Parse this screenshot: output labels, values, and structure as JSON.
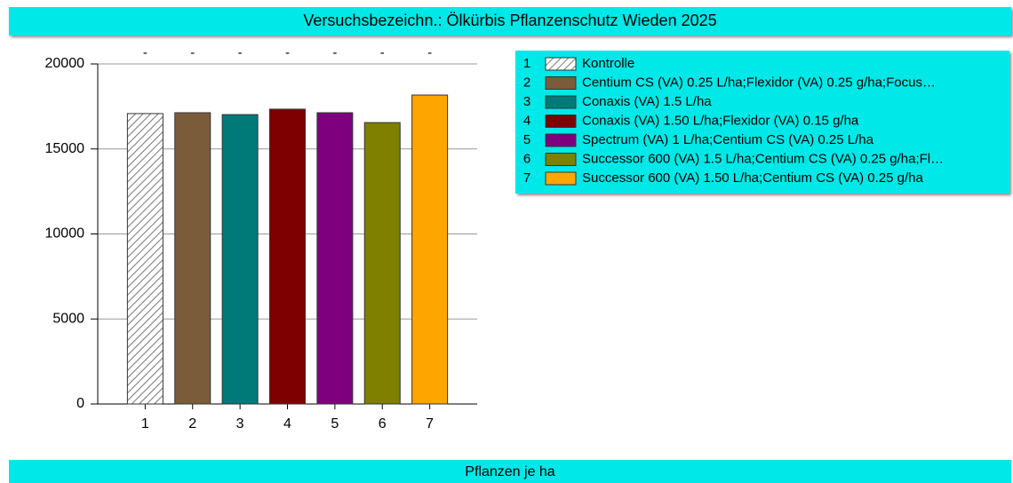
{
  "chart_data": {
    "type": "bar",
    "title": "Versuchsbezeichn.: Ölkürbis Pflanzenschutz Wieden 2025",
    "footer": "Pflanzen je ha",
    "categories": [
      "1",
      "2",
      "3",
      "4",
      "5",
      "6",
      "7"
    ],
    "values": [
      17080,
      17130,
      17020,
      17340,
      17130,
      16550,
      18170
    ],
    "value_labels": [
      "-",
      "-",
      "-",
      "-",
      "-",
      "-",
      "-"
    ],
    "colors": [
      "#ffffff",
      "#7b5c3a",
      "#007a78",
      "#7f0000",
      "#7f007f",
      "#7f7f00",
      "#ffa500"
    ],
    "hatch": [
      true,
      false,
      false,
      false,
      false,
      false,
      false
    ],
    "legend": [
      "Kontrolle",
      "Centium CS (VA) 0.25 L/ha;Flexidor (VA) 0.25 g/ha;Focus…",
      "Conaxis (VA) 1.5 L/ha",
      "Conaxis (VA) 1.50 L/ha;Flexidor (VA) 0.15 g/ha",
      "Spectrum (VA) 1 L/ha;Centium CS (VA) 0.25 L/ha",
      "Successor 600 (VA) 1.5 L/ha;Centium CS (VA) 0.25 g/ha;Fl…",
      "Successor 600 (VA) 1.50 L/ha;Centium CS (VA) 0.25 g/ha"
    ],
    "ylim": [
      0,
      20000
    ],
    "yticks": [
      0,
      5000,
      10000,
      15000,
      20000
    ],
    "grid": true
  }
}
